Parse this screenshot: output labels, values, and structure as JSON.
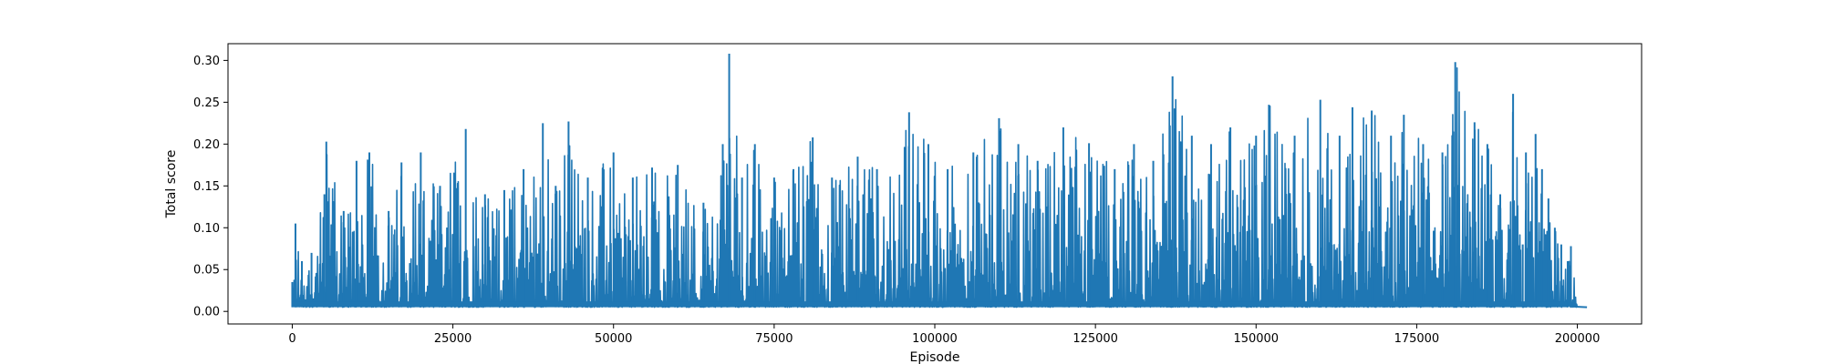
{
  "chart_data": {
    "type": "line",
    "title": "",
    "xlabel": "Episode",
    "ylabel": "Total score",
    "xlim": [
      -10000,
      210000
    ],
    "ylim": [
      -0.015,
      0.32
    ],
    "x_ticks": [
      0,
      25000,
      50000,
      75000,
      100000,
      125000,
      150000,
      175000,
      200000
    ],
    "x_tick_labels": [
      "0",
      "25000",
      "50000",
      "75000",
      "100000",
      "125000",
      "150000",
      "175000",
      "200000"
    ],
    "y_ticks": [
      0.0,
      0.05,
      0.1,
      0.15,
      0.2,
      0.25,
      0.3
    ],
    "y_tick_labels": [
      "0.00",
      "0.05",
      "0.10",
      "0.15",
      "0.20",
      "0.25",
      "0.30"
    ],
    "grid": false,
    "legend": "none",
    "series_color": "#1f77b4",
    "baseline": 0.005,
    "series": [
      {
        "values_description": "noisy per-episode score; envelope of peaks shown as x,y pairs",
        "x": [
          0,
          500,
          1500,
          3000,
          5000,
          5300,
          8000,
          10000,
          12000,
          15000,
          17000,
          20000,
          23000,
          27000,
          30000,
          33000,
          36000,
          39000,
          41000,
          43000,
          46000,
          50000,
          53000,
          56000,
          60000,
          64000,
          67000,
          68000,
          70000,
          72000,
          75000,
          78000,
          81000,
          84000,
          88000,
          91000,
          96000,
          99000,
          102000,
          106000,
          110000,
          113000,
          116000,
          120000,
          124000,
          128000,
          131000,
          134000,
          137000,
          140000,
          143000,
          146000,
          150000,
          152000,
          156000,
          160000,
          163000,
          165000,
          168000,
          171000,
          173000,
          176000,
          179000,
          181000,
          184000,
          186000,
          188000,
          190000,
          191500,
          192000,
          193500,
          194500,
          195500,
          196500,
          197500,
          198500,
          199000,
          200000
        ],
        "y": [
          0.035,
          0.105,
          0.06,
          0.07,
          0.14,
          0.203,
          0.12,
          0.18,
          0.19,
          0.12,
          0.178,
          0.19,
          0.15,
          0.218,
          0.14,
          0.145,
          0.17,
          0.225,
          0.15,
          0.227,
          0.16,
          0.19,
          0.16,
          0.172,
          0.175,
          0.13,
          0.2,
          0.308,
          0.16,
          0.2,
          0.16,
          0.17,
          0.208,
          0.16,
          0.185,
          0.17,
          0.238,
          0.2,
          0.17,
          0.19,
          0.231,
          0.2,
          0.18,
          0.22,
          0.201,
          0.17,
          0.2,
          0.18,
          0.281,
          0.21,
          0.2,
          0.22,
          0.21,
          0.247,
          0.21,
          0.253,
          0.21,
          0.244,
          0.24,
          0.21,
          0.235,
          0.2,
          0.19,
          0.298,
          0.226,
          0.2,
          0.14,
          0.26,
          0.08,
          0.19,
          0.212,
          0.17,
          0.135,
          0.1,
          0.08,
          0.06,
          0.078,
          0.005
        ]
      }
    ]
  }
}
